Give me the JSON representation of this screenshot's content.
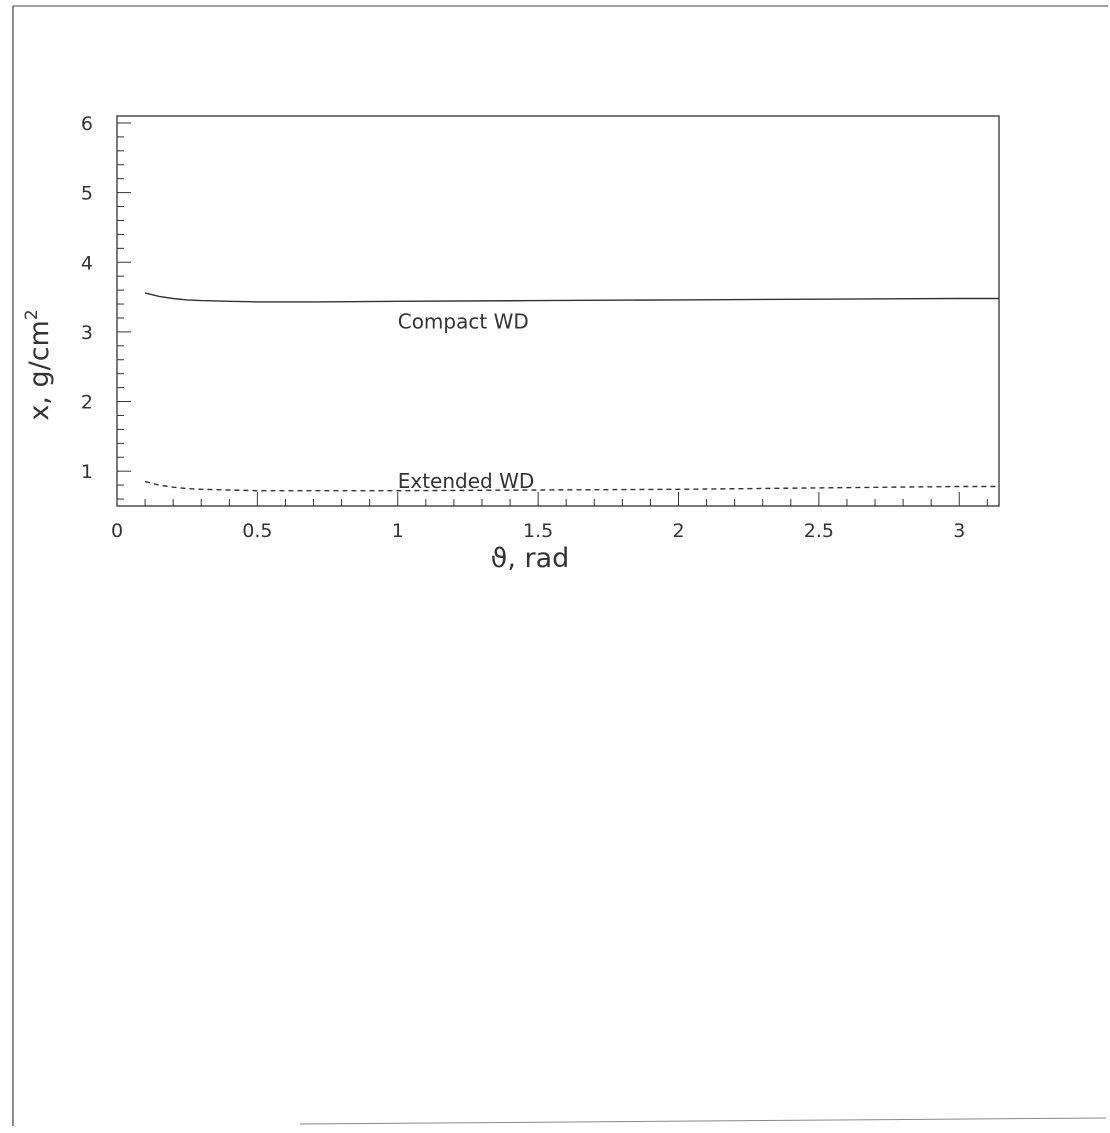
{
  "chart_data": {
    "type": "line",
    "title": "",
    "xlabel": "ϑ, rad",
    "ylabel_main": "x, g/cm",
    "ylabel_sup": "2",
    "xlim": [
      0,
      3.1416
    ],
    "ylim": [
      0.5,
      6.1
    ],
    "x_ticks": [
      0,
      0.5,
      1,
      1.5,
      2,
      2.5,
      3
    ],
    "x_tick_labels": [
      "0",
      "0.5",
      "1",
      "1.5",
      "2",
      "2.5",
      "3"
    ],
    "y_ticks": [
      1,
      2,
      3,
      4,
      5,
      6
    ],
    "y_tick_labels": [
      "1",
      "2",
      "3",
      "4",
      "5",
      "6"
    ],
    "grid": false,
    "series": [
      {
        "name": "Compact WD",
        "style": "solid",
        "x": [
          0.1,
          0.15,
          0.2,
          0.25,
          0.3,
          0.4,
          0.5,
          0.7,
          1.0,
          1.5,
          2.0,
          2.5,
          3.0,
          3.1416
        ],
        "y": [
          3.56,
          3.51,
          3.48,
          3.46,
          3.45,
          3.44,
          3.43,
          3.43,
          3.44,
          3.45,
          3.46,
          3.47,
          3.48,
          3.48
        ]
      },
      {
        "name": "Extended WD",
        "style": "dashed",
        "x": [
          0.1,
          0.15,
          0.2,
          0.25,
          0.3,
          0.4,
          0.5,
          0.7,
          1.0,
          1.5,
          2.0,
          2.5,
          3.0,
          3.1416
        ],
        "y": [
          0.85,
          0.8,
          0.77,
          0.75,
          0.74,
          0.73,
          0.72,
          0.72,
          0.72,
          0.73,
          0.74,
          0.76,
          0.78,
          0.78
        ]
      }
    ],
    "annotations": [
      {
        "text": "Compact WD",
        "x": 1.0,
        "y": 3.15
      },
      {
        "text": "Extended WD",
        "x": 1.0,
        "y": 0.86
      }
    ]
  }
}
